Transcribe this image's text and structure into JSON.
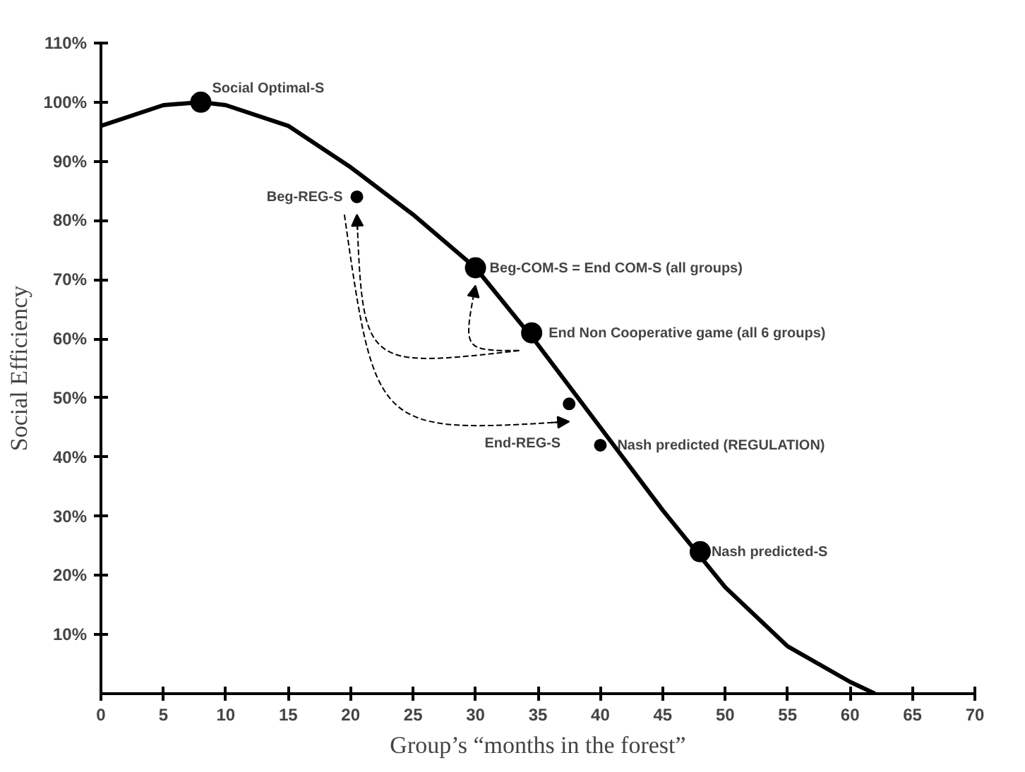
{
  "chart_data": {
    "type": "line",
    "xlabel": "Group’s “months in the forest”",
    "ylabel": "Social Efficiency",
    "xlim": [
      0,
      70
    ],
    "ylim": [
      0,
      110
    ],
    "xticks": [
      0,
      5,
      10,
      15,
      20,
      25,
      30,
      35,
      40,
      45,
      50,
      55,
      60,
      65,
      70
    ],
    "yticks": [
      {
        "value": 10,
        "label": "10%"
      },
      {
        "value": 20,
        "label": "20%"
      },
      {
        "value": 30,
        "label": "30%"
      },
      {
        "value": 40,
        "label": "40%"
      },
      {
        "value": 50,
        "label": "50%"
      },
      {
        "value": 60,
        "label": "60%"
      },
      {
        "value": 70,
        "label": "70%"
      },
      {
        "value": 80,
        "label": "80%"
      },
      {
        "value": 90,
        "label": "90%"
      },
      {
        "value": 100,
        "label": "100%"
      },
      {
        "value": 110,
        "label": "110%"
      }
    ],
    "grid": false,
    "series": [
      {
        "color": "#000000",
        "x": [
          0,
          5,
          8,
          10,
          15,
          20,
          25,
          30,
          35,
          40,
          45,
          50,
          55,
          60,
          62
        ],
        "values": [
          96,
          99.5,
          100,
          99.5,
          96,
          89,
          81,
          72,
          59,
          45,
          31,
          18,
          8,
          2,
          0
        ]
      },
      {
        "type": "scatter",
        "color": "#000000",
        "marker": "circle",
        "x": [
          8,
          30,
          34.5,
          48
        ],
        "values": [
          100,
          72,
          61,
          24
        ]
      },
      {
        "type": "scatter",
        "color": "#000000",
        "marker": "circle",
        "x": [
          20.5,
          37.5,
          40
        ],
        "values": [
          84,
          49,
          42
        ]
      }
    ],
    "annotations": [
      {
        "text": "Social Optimal-S",
        "x": 8,
        "y": 100
      },
      {
        "text": "Beg-REG-S",
        "x": 20.5,
        "y": 84
      },
      {
        "text": "Beg-COM-S = End COM-S (all groups)",
        "x": 30,
        "y": 72
      },
      {
        "text": "End Non Cooperative game (all 6 groups)",
        "x": 34.5,
        "y": 61
      },
      {
        "text": "End-REG-S",
        "x": 37.5,
        "y": 49
      },
      {
        "text": "Nash predicted (REGULATION)",
        "x": 40,
        "y": 42
      },
      {
        "text": "Nash predicted-S",
        "x": 48,
        "y": 24
      }
    ]
  }
}
